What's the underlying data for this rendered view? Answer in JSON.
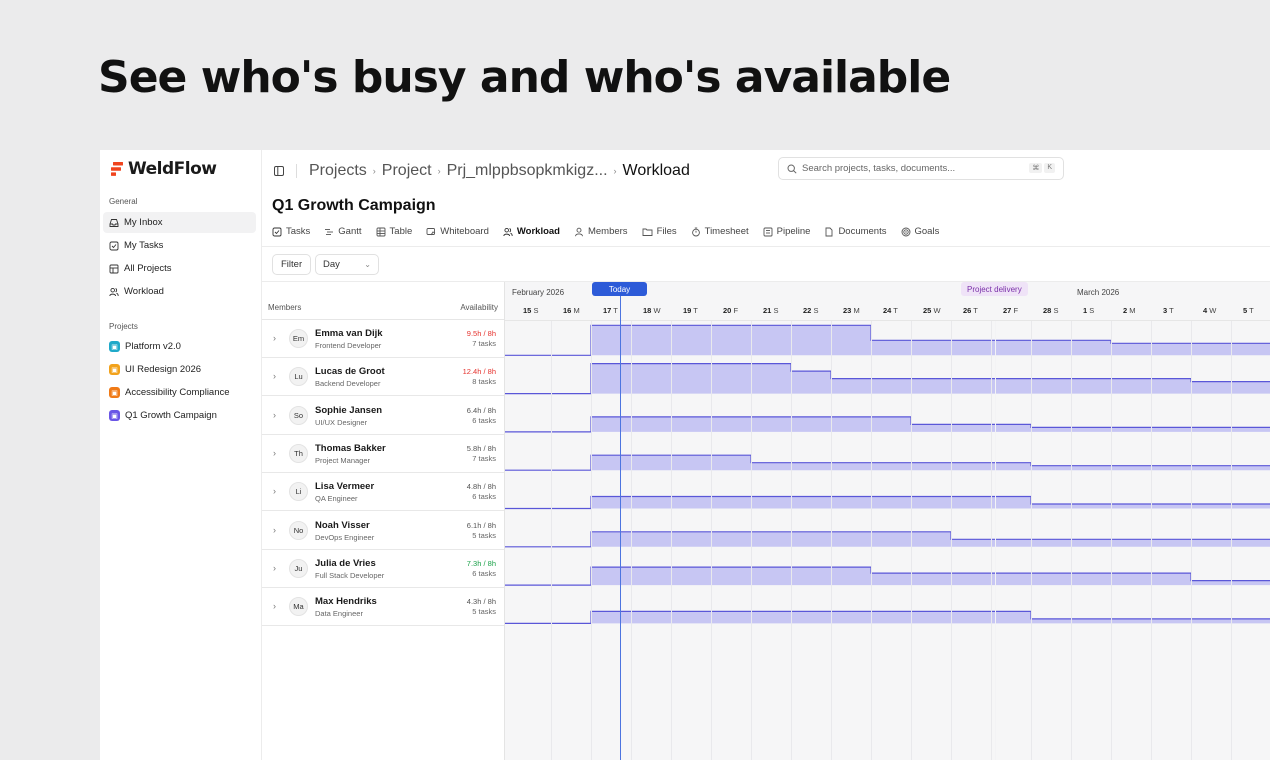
{
  "headline": "See who's busy and who's available",
  "sidebar": {
    "logo": "WeldFlow",
    "general_label": "General",
    "general_items": [
      {
        "label": "My Inbox",
        "icon": "inbox-icon"
      },
      {
        "label": "My Tasks",
        "icon": "checkbox-icon"
      },
      {
        "label": "All Projects",
        "icon": "grid-icon"
      },
      {
        "label": "Workload",
        "icon": "people-icon"
      }
    ],
    "projects_label": "Projects",
    "projects": [
      {
        "label": "Platform v2.0",
        "color": "#1fa9c9"
      },
      {
        "label": "UI Redesign 2026",
        "color": "#f2a21b"
      },
      {
        "label": "Accessibility Compliance",
        "color": "#f07a16"
      },
      {
        "label": "Q1 Growth Campaign",
        "color": "#6a56e6"
      }
    ]
  },
  "breadcrumb": [
    "Projects",
    "Project",
    "Prj_mlppbsopkmkigz...",
    "Workload"
  ],
  "search": {
    "placeholder": "Search projects, tasks, documents...",
    "shortcut": [
      "⌘",
      "K"
    ]
  },
  "project_title": "Q1 Growth Campaign",
  "tabs": [
    {
      "label": "Tasks",
      "icon": "checkbox-icon"
    },
    {
      "label": "Gantt",
      "icon": "gantt-icon"
    },
    {
      "label": "Table",
      "icon": "table-icon"
    },
    {
      "label": "Whiteboard",
      "icon": "whiteboard-icon"
    },
    {
      "label": "Workload",
      "icon": "people-icon",
      "active": true
    },
    {
      "label": "Members",
      "icon": "person-icon"
    },
    {
      "label": "Files",
      "icon": "folder-icon"
    },
    {
      "label": "Timesheet",
      "icon": "timer-icon"
    },
    {
      "label": "Pipeline",
      "icon": "pipeline-icon"
    },
    {
      "label": "Documents",
      "icon": "document-icon"
    },
    {
      "label": "Goals",
      "icon": "target-icon"
    }
  ],
  "toolbar": {
    "filter": "Filter",
    "view": "Day"
  },
  "columns": {
    "members": "Members",
    "availability": "Availability"
  },
  "timeline": {
    "months": [
      "February 2026",
      "March 2026"
    ],
    "today_label": "Today",
    "milestone_label": "Project delivery",
    "days": [
      {
        "num": "15",
        "dow": "S"
      },
      {
        "num": "16",
        "dow": "M"
      },
      {
        "num": "17",
        "dow": "T"
      },
      {
        "num": "18",
        "dow": "W"
      },
      {
        "num": "19",
        "dow": "T"
      },
      {
        "num": "20",
        "dow": "F"
      },
      {
        "num": "21",
        "dow": "S"
      },
      {
        "num": "22",
        "dow": "S"
      },
      {
        "num": "23",
        "dow": "M"
      },
      {
        "num": "24",
        "dow": "T"
      },
      {
        "num": "25",
        "dow": "W"
      },
      {
        "num": "26",
        "dow": "T"
      },
      {
        "num": "27",
        "dow": "F"
      },
      {
        "num": "28",
        "dow": "S"
      },
      {
        "num": "1",
        "dow": "S"
      },
      {
        "num": "2",
        "dow": "M"
      },
      {
        "num": "3",
        "dow": "T"
      },
      {
        "num": "4",
        "dow": "W"
      },
      {
        "num": "5",
        "dow": "T"
      }
    ]
  },
  "members": [
    {
      "initials": "Em",
      "name": "Emma van Dijk",
      "role": "Frontend Developer",
      "hours": "9.5h / 8h",
      "tasks": "7 tasks",
      "hours_color": "#e5322d",
      "load": [
        [
          2,
          2,
          2,
          2,
          2,
          2,
          2,
          1,
          1,
          1,
          1,
          1,
          1,
          0.8,
          0.8,
          0.8,
          0.8,
          0.8
        ]
      ]
    },
    {
      "initials": "Lu",
      "name": "Lucas de Groot",
      "role": "Backend Developer",
      "hours": "12.4h / 8h",
      "tasks": "8 tasks",
      "hours_color": "#e5322d",
      "load": [
        [
          2,
          2,
          2,
          2,
          2,
          1.5,
          1,
          1,
          1,
          1,
          1,
          1,
          1,
          1,
          1,
          0.8,
          0.8,
          0.8
        ]
      ]
    },
    {
      "initials": "So",
      "name": "Sophie Jansen",
      "role": "UI/UX Designer",
      "hours": "6.4h / 8h",
      "tasks": "6 tasks",
      "hours_color": "#555555",
      "load": [
        [
          1,
          1,
          1,
          1,
          1,
          1,
          1,
          1,
          0.5,
          0.5,
          0.5,
          0.3,
          0.3,
          0.3,
          0.3,
          0.3,
          0.3,
          0.3
        ]
      ]
    },
    {
      "initials": "Th",
      "name": "Thomas Bakker",
      "role": "Project Manager",
      "hours": "5.8h / 8h",
      "tasks": "7 tasks",
      "hours_color": "#555555",
      "load": [
        [
          1,
          1,
          1,
          1,
          0.5,
          0.5,
          0.5,
          0.5,
          0.5,
          0.5,
          0.5,
          0.3,
          0.3,
          0.3,
          0.3,
          0.3,
          0.3,
          0.3
        ]
      ]
    },
    {
      "initials": "Li",
      "name": "Lisa Vermeer",
      "role": "QA Engineer",
      "hours": "4.8h / 8h",
      "tasks": "6 tasks",
      "hours_color": "#555555",
      "load": [
        [
          0.8,
          0.8,
          0.8,
          0.8,
          0.8,
          0.8,
          0.8,
          0.8,
          0.8,
          0.8,
          0.8,
          0.3,
          0.3,
          0.3,
          0.3,
          0.3,
          0.3,
          0.3
        ]
      ]
    },
    {
      "initials": "No",
      "name": "Noah Visser",
      "role": "DevOps Engineer",
      "hours": "6.1h / 8h",
      "tasks": "5 tasks",
      "hours_color": "#555555",
      "load": [
        [
          1,
          1,
          1,
          1,
          1,
          1,
          1,
          1,
          1,
          0.5,
          0.5,
          0.5,
          0.5,
          0.5,
          0.5,
          0.5,
          0.5,
          0.3
        ]
      ]
    },
    {
      "initials": "Ju",
      "name": "Julia de Vries",
      "role": "Full Stack Developer",
      "hours": "7.3h / 8h",
      "tasks": "6 tasks",
      "hours_color": "#1ca24a",
      "load": [
        [
          1.2,
          1.2,
          1.2,
          1.2,
          1.2,
          1.2,
          1.2,
          0.8,
          0.8,
          0.8,
          0.8,
          0.8,
          0.8,
          0.8,
          0.8,
          0.3,
          0.3,
          0.3
        ]
      ]
    },
    {
      "initials": "Ma",
      "name": "Max Hendriks",
      "role": "Data Engineer",
      "hours": "4.3h / 8h",
      "tasks": "5 tasks",
      "hours_color": "#555555",
      "load": [
        [
          0.8,
          0.8,
          0.8,
          0.8,
          0.8,
          0.8,
          0.8,
          0.8,
          0.8,
          0.8,
          0.8,
          0.3,
          0.3,
          0.3,
          0.3,
          0.3,
          0.3,
          0.3
        ]
      ]
    }
  ],
  "colors": {
    "accent": "#2d5bd8",
    "load_fill": "#c7c6f3",
    "load_line": "#5a57d8"
  }
}
